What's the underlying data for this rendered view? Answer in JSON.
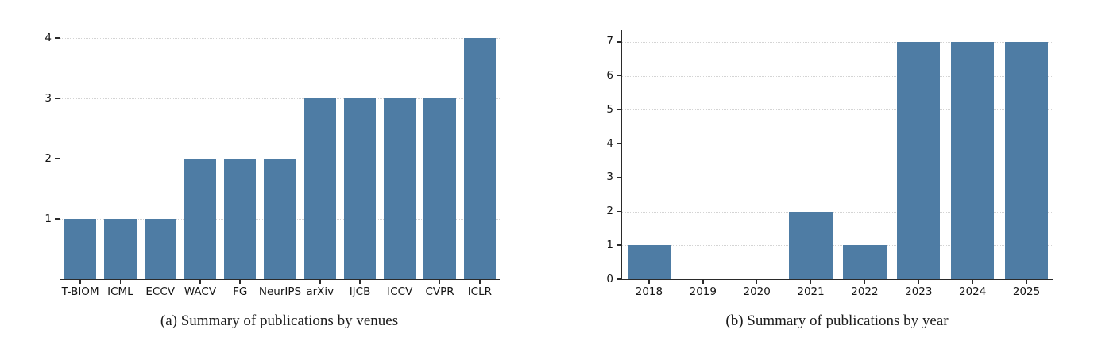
{
  "figure": {
    "background": "#ffffff",
    "bar_color": "#4e7ca4",
    "spine_color": "#2a2a2a",
    "grid_color": "#d4d4d4"
  },
  "chart_data": [
    {
      "type": "bar",
      "caption": "(a) Summary of publications by venues",
      "categories": [
        "T-BIOM",
        "ICML",
        "ECCV",
        "WACV",
        "FG",
        "NeurIPS",
        "arXiv",
        "IJCB",
        "ICCV",
        "CVPR",
        "ICLR"
      ],
      "values": [
        1,
        1,
        1,
        2,
        2,
        2,
        3,
        3,
        3,
        3,
        4
      ],
      "yticks": [
        1,
        2,
        3,
        4
      ],
      "ylim": [
        0,
        4.2
      ],
      "xlabel": "",
      "ylabel": "",
      "grid": true,
      "legend": null,
      "bar_color": "#4e7ca4",
      "bar_width_ratio": 0.8
    },
    {
      "type": "bar",
      "caption": "(b) Summary of publications by year",
      "categories": [
        "2018",
        "2019",
        "2020",
        "2021",
        "2022",
        "2023",
        "2024",
        "2025"
      ],
      "values": [
        1,
        0,
        0,
        2,
        1,
        7,
        7,
        7
      ],
      "yticks": [
        0,
        1,
        2,
        3,
        4,
        5,
        6,
        7
      ],
      "ylim": [
        0,
        7.35
      ],
      "xlabel": "",
      "ylabel": "",
      "grid": true,
      "legend": null,
      "bar_color": "#4e7ca4",
      "bar_width_ratio": 0.8
    }
  ]
}
